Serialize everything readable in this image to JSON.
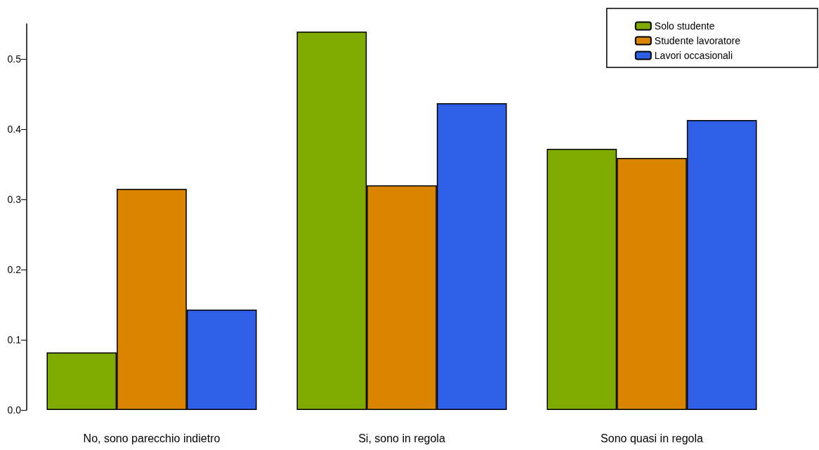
{
  "chart_data": {
    "type": "bar",
    "categories": [
      "No, sono parecchio indietro",
      "Si, sono in regola",
      "Sono quasi in regola"
    ],
    "series": [
      {
        "name": "Solo studente",
        "color": "#7fab00",
        "values": [
          0.082,
          0.539,
          0.372
        ]
      },
      {
        "name": "Studente lavoratore",
        "color": "#d98500",
        "values": [
          0.315,
          0.32,
          0.359
        ]
      },
      {
        "name": "Lavori occasionali",
        "color": "#2f5fe6",
        "values": [
          0.143,
          0.437,
          0.413
        ]
      }
    ],
    "ylim": [
      0,
      0.55
    ],
    "yticks": [
      {
        "value": 0,
        "label": "0.0"
      },
      0.1,
      0.2,
      0.3,
      0.4,
      0.5
    ],
    "grid": false,
    "legend": "top right"
  }
}
